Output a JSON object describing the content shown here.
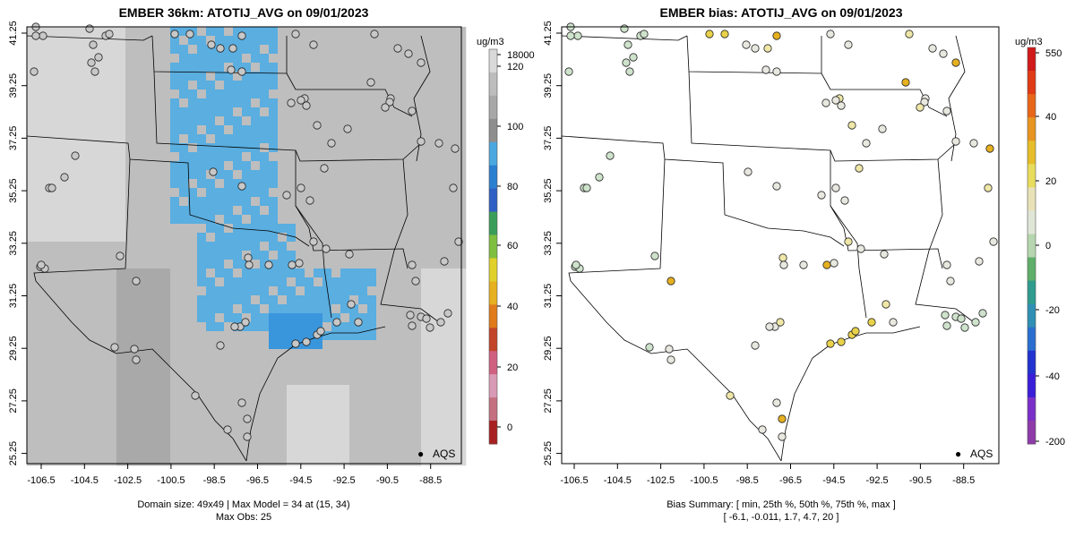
{
  "chart_data": [
    {
      "type": "heatmap",
      "title": "EMBER 36km: ATOTIJ_AVG on 09/01/2023",
      "colorbar": {
        "unit": "ug/m3",
        "ticks": [
          "18000",
          "120",
          "100",
          "80",
          "60",
          "40",
          "20",
          "0"
        ],
        "colors": [
          "#d9d9d9",
          "#bdbdbd",
          "#a8a8a8",
          "#8e8e8e",
          "#4aa8e0",
          "#2b7fd0",
          "#2f5fc4",
          "#3a9e5a",
          "#7fbf3f",
          "#e0d12a",
          "#e6b020",
          "#e07a1a",
          "#c2452a",
          "#d06080",
          "#d99ab5",
          "#c47080",
          "#a82020"
        ]
      },
      "xticks": [
        "-106.5",
        "-104.5",
        "-102.5",
        "-100.5",
        "-98.5",
        "-96.5",
        "-94.5",
        "-92.5",
        "-90.5",
        "-88.5"
      ],
      "yticks": [
        "41.25",
        "39.25",
        "37.25",
        "35.25",
        "33.25",
        "31.25",
        "29.25",
        "27.25",
        "25.25"
      ],
      "xlim": [
        -107.3,
        -88.0
      ],
      "ylim": [
        25.0,
        41.5
      ],
      "legend": {
        "marker": "●",
        "label": "AQS"
      },
      "caption": [
        "Domain size: 49x49 | Max Model = 34 at (15, 34)",
        "Max Obs: 25"
      ],
      "colors": {
        "background": "#bebebe",
        "plume": "#5aaee0",
        "plume_core": "#3a96dc",
        "light": "#d7d7d7",
        "dark": "#a9a9a9"
      }
    },
    {
      "type": "scatter",
      "title": "EMBER bias: ATOTIJ_AVG on 09/01/2023",
      "colorbar": {
        "unit": "ug/m3",
        "ticks": [
          "550",
          "40",
          "20",
          "0",
          "-20",
          "-40",
          "-200"
        ],
        "colors": [
          "#d11a1a",
          "#e03a16",
          "#e8661a",
          "#e89420",
          "#e6be2a",
          "#e8dc5c",
          "#e9e2b8",
          "#dfe6d7",
          "#b6d6b0",
          "#5fae6a",
          "#2f9c8e",
          "#2f8fb4",
          "#2a6fd0",
          "#2233d0",
          "#3a1ed8",
          "#7a30c8",
          "#8e3aa8"
        ]
      },
      "xticks": [
        "-106.5",
        "-104.5",
        "-102.5",
        "-100.5",
        "-98.5",
        "-96.5",
        "-94.5",
        "-92.5",
        "-90.5",
        "-88.5"
      ],
      "yticks": [
        "41.25",
        "39.25",
        "37.25",
        "35.25",
        "33.25",
        "31.25",
        "29.25",
        "27.25",
        "25.25"
      ],
      "xlim": [
        -107.3,
        -88.0
      ],
      "ylim": [
        25.0,
        41.5
      ],
      "legend": {
        "marker": "●",
        "label": "AQS"
      },
      "caption": [
        "Bias Summary: [ min, 25th %, 50th %, 75th %, max ]",
        "[ -6.1,   -0.011,   1.7,   4.7,   20 ]"
      ],
      "bias_summary": {
        "min": -6.1,
        "p25": -0.011,
        "p50": 1.7,
        "p75": 4.7,
        "max": 20
      },
      "colors": {
        "neutral": "#e8e8e0",
        "slightly_negative": "#cfe3cc",
        "slightly_positive": "#efe7a8",
        "positive": "#e9d24a",
        "high": "#e6b020"
      }
    }
  ]
}
